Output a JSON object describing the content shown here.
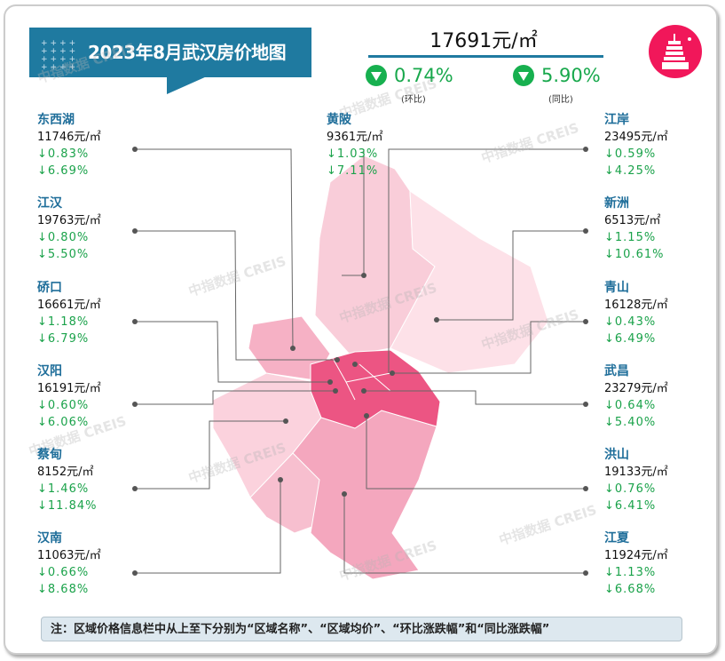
{
  "header": {
    "title": "2023年8月武汉房价地图",
    "avg_price": "17691元/㎡",
    "mom": "0.74%",
    "mom_label": "(环比)",
    "yoy": "5.90%",
    "yoy_label": "(同比)"
  },
  "colors": {
    "title_bg": "#1f7aa0",
    "drop_green": "#18a84c",
    "logo": "#f1175a"
  },
  "watermark": "中指数据 CREIS",
  "chart_data": {
    "type": "table",
    "title": "2023年8月武汉房价地图",
    "unit": "元/㎡",
    "direction": "down",
    "districts": [
      {
        "name": "东西湖",
        "price": 11746,
        "price_label": "11746元/㎡",
        "mom": "↓0.83%",
        "yoy": "↓6.69%"
      },
      {
        "name": "江汉",
        "price": 19763,
        "price_label": "19763元/㎡",
        "mom": "↓0.80%",
        "yoy": "↓5.50%"
      },
      {
        "name": "硚口",
        "price": 16661,
        "price_label": "16661元/㎡",
        "mom": "↓1.18%",
        "yoy": "↓6.79%"
      },
      {
        "name": "汉阳",
        "price": 16191,
        "price_label": "16191元/㎡",
        "mom": "↓0.60%",
        "yoy": "↓6.06%"
      },
      {
        "name": "蔡甸",
        "price": 8152,
        "price_label": "8152元/㎡",
        "mom": "↓1.46%",
        "yoy": "↓11.84%"
      },
      {
        "name": "汉南",
        "price": 11063,
        "price_label": "11063元/㎡",
        "mom": "↓0.66%",
        "yoy": "↓8.68%"
      },
      {
        "name": "黄陂",
        "price": 9361,
        "price_label": "9361元/㎡",
        "mom": "↓1.03%",
        "yoy": "↓7.11%"
      },
      {
        "name": "江岸",
        "price": 23495,
        "price_label": "23495元/㎡",
        "mom": "↓0.59%",
        "yoy": "↓4.25%"
      },
      {
        "name": "新洲",
        "price": 6513,
        "price_label": "6513元/㎡",
        "mom": "↓1.15%",
        "yoy": "↓10.61%"
      },
      {
        "name": "青山",
        "price": 16128,
        "price_label": "16128元/㎡",
        "mom": "↓0.43%",
        "yoy": "↓6.49%"
      },
      {
        "name": "武昌",
        "price": 23279,
        "price_label": "23279元/㎡",
        "mom": "↓0.64%",
        "yoy": "↓5.40%"
      },
      {
        "name": "洪山",
        "price": 19133,
        "price_label": "19133元/㎡",
        "mom": "↓0.76%",
        "yoy": "↓6.41%"
      },
      {
        "name": "江夏",
        "price": 11924,
        "price_label": "11924元/㎡",
        "mom": "↓1.13%",
        "yoy": "↓6.68%"
      }
    ]
  },
  "note": "注：区域价格信息栏中从上至下分别为“区域名称”、“区域均价”、“环比涨跌幅”和“同比涨跌幅”"
}
